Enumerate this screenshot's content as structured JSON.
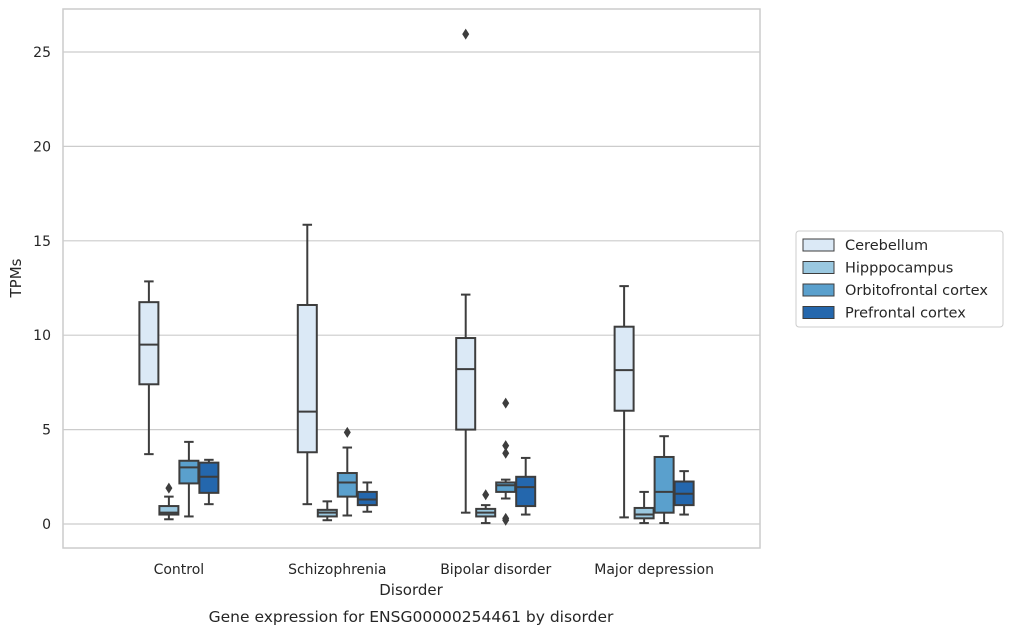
{
  "chart_data": {
    "type": "box",
    "caption": "Gene expression for ENSG00000254461 by disorder",
    "xlabel": "Disorder",
    "ylabel": "TPMs",
    "ylim": [
      -1.25,
      27.3
    ],
    "yticks": [
      0,
      5,
      10,
      15,
      20,
      25
    ],
    "grid": true,
    "legend_position": "right",
    "categories": [
      "Control",
      "Schizophrenia",
      "Bipolar disorder",
      "Major depression"
    ],
    "series": [
      {
        "name": "Cerebellum",
        "color": "#dbe9f6",
        "boxes": [
          {
            "whislo": 3.7,
            "q1": 7.4,
            "med": 9.5,
            "q3": 11.75,
            "whishi": 12.85,
            "fliers": []
          },
          {
            "whislo": 1.05,
            "q1": 3.8,
            "med": 5.95,
            "q3": 11.6,
            "whishi": 15.85,
            "fliers": []
          },
          {
            "whislo": 0.6,
            "q1": 5.0,
            "med": 8.2,
            "q3": 9.85,
            "whishi": 12.15,
            "fliers": [
              25.95
            ]
          },
          {
            "whislo": 0.35,
            "q1": 6.0,
            "med": 8.15,
            "q3": 10.45,
            "whishi": 12.6,
            "fliers": []
          }
        ]
      },
      {
        "name": "Hipppocampus",
        "color": "#9ac8e0",
        "boxes": [
          {
            "whislo": 0.25,
            "q1": 0.5,
            "med": 0.6,
            "q3": 0.95,
            "whishi": 1.45,
            "fliers": [
              1.9
            ]
          },
          {
            "whislo": 0.2,
            "q1": 0.4,
            "med": 0.6,
            "q3": 0.75,
            "whishi": 1.2,
            "fliers": []
          },
          {
            "whislo": 0.05,
            "q1": 0.4,
            "med": 0.6,
            "q3": 0.8,
            "whishi": 1.0,
            "fliers": [
              1.55
            ]
          },
          {
            "whislo": 0.05,
            "q1": 0.3,
            "med": 0.5,
            "q3": 0.85,
            "whishi": 1.7,
            "fliers": []
          }
        ]
      },
      {
        "name": "Orbitofrontal cortex",
        "color": "#5aa0cd",
        "boxes": [
          {
            "whislo": 0.4,
            "q1": 2.15,
            "med": 3.0,
            "q3": 3.35,
            "whishi": 4.35,
            "fliers": []
          },
          {
            "whislo": 0.45,
            "q1": 1.45,
            "med": 2.2,
            "q3": 2.7,
            "whishi": 4.05,
            "fliers": [
              4.85
            ]
          },
          {
            "whislo": 1.35,
            "q1": 1.7,
            "med": 2.05,
            "q3": 2.2,
            "whishi": 2.35,
            "fliers": [
              3.75,
              4.15,
              6.4,
              0.3,
              0.2
            ]
          },
          {
            "whislo": 0.05,
            "q1": 0.6,
            "med": 1.7,
            "q3": 3.55,
            "whishi": 4.65,
            "fliers": []
          }
        ]
      },
      {
        "name": "Prefrontal cortex",
        "color": "#2467ad",
        "boxes": [
          {
            "whislo": 1.05,
            "q1": 1.65,
            "med": 2.5,
            "q3": 3.25,
            "whishi": 3.4,
            "fliers": []
          },
          {
            "whislo": 0.65,
            "q1": 1.0,
            "med": 1.3,
            "q3": 1.7,
            "whishi": 2.2,
            "fliers": []
          },
          {
            "whislo": 0.5,
            "q1": 0.95,
            "med": 1.95,
            "q3": 2.5,
            "whishi": 3.5,
            "fliers": []
          },
          {
            "whislo": 0.5,
            "q1": 1.0,
            "med": 1.6,
            "q3": 2.25,
            "whishi": 2.8,
            "fliers": []
          }
        ]
      }
    ]
  }
}
